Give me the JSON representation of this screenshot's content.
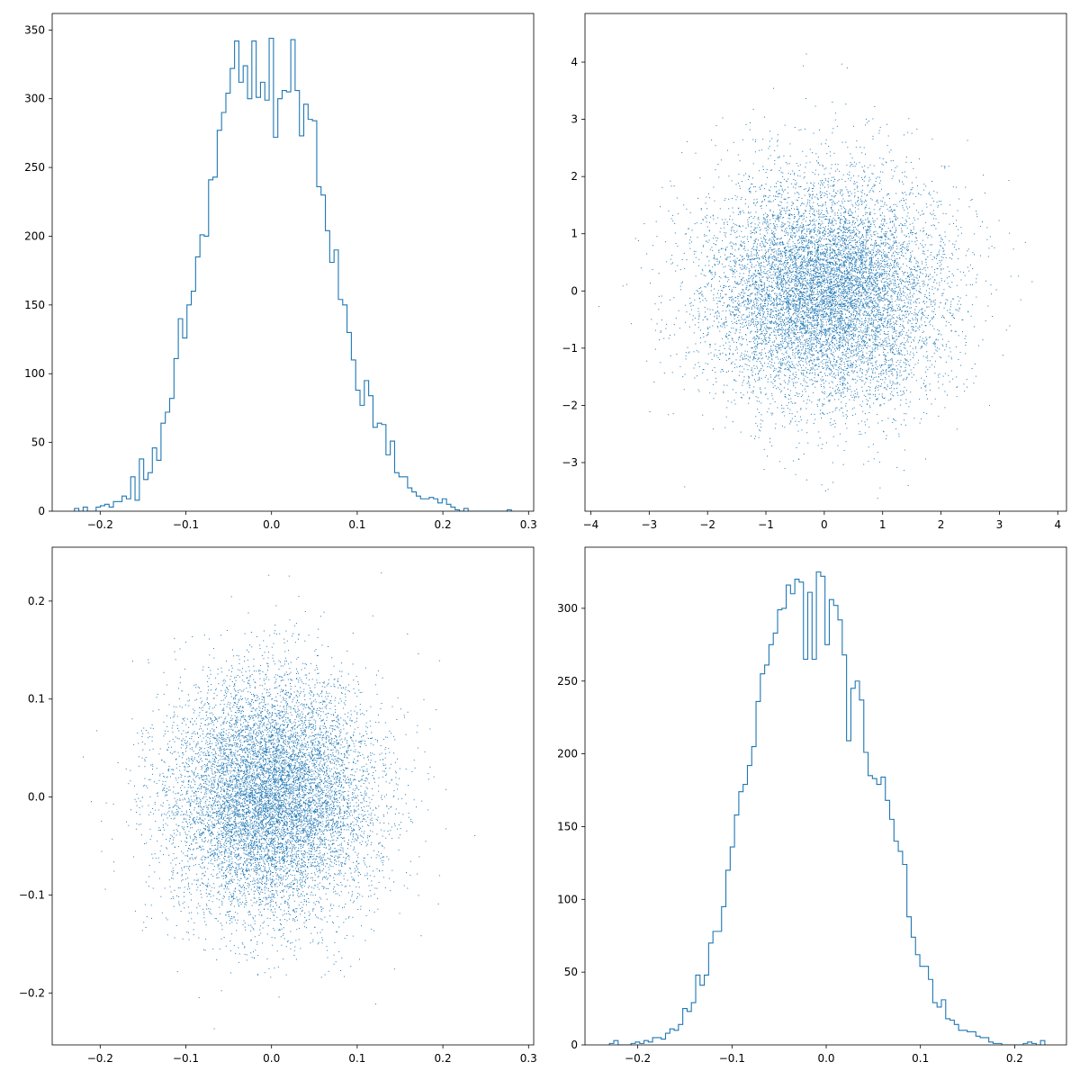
{
  "colors": {
    "series": "#1f77b4",
    "axes": "#000000",
    "background": "#ffffff"
  },
  "chart_data": [
    {
      "type": "bar",
      "style": "step-histogram",
      "title": "",
      "xlabel": "",
      "ylabel": "",
      "grid": false,
      "xlim": [
        -0.256,
        0.306
      ],
      "ylim": [
        0,
        362
      ],
      "xticks": [
        -0.2,
        -0.1,
        0.0,
        0.1,
        0.2,
        0.3
      ],
      "xtick_labels": [
        "−0.2",
        "−0.1",
        "0.0",
        "0.1",
        "0.2",
        "0.3"
      ],
      "yticks": [
        0,
        50,
        100,
        150,
        200,
        250,
        300,
        350
      ],
      "ytick_labels": [
        "0",
        "50",
        "100",
        "150",
        "200",
        "250",
        "300",
        "350"
      ],
      "bin_start": -0.23,
      "bin_end": 0.28,
      "values": [
        2,
        0,
        3,
        0,
        0,
        3,
        4,
        5,
        3,
        7,
        7,
        11,
        9,
        25,
        8,
        38,
        23,
        28,
        46,
        37,
        64,
        72,
        82,
        111,
        140,
        126,
        150,
        160,
        185,
        201,
        200,
        241,
        243,
        277,
        290,
        304,
        322,
        342,
        312,
        324,
        300,
        342,
        301,
        312,
        299,
        344,
        272,
        300,
        306,
        305,
        343,
        306,
        273,
        296,
        285,
        284,
        236,
        230,
        204,
        181,
        190,
        154,
        150,
        130,
        110,
        88,
        77,
        95,
        84,
        61,
        64,
        63,
        41,
        51,
        28,
        25,
        25,
        17,
        14,
        11,
        9,
        9,
        10,
        9,
        6,
        9,
        5,
        3,
        1,
        0,
        2,
        0,
        0,
        0,
        0,
        0,
        0,
        0,
        0,
        0,
        1
      ]
    },
    {
      "type": "scatter",
      "title": "",
      "xlabel": "",
      "ylabel": "",
      "grid": false,
      "xlim": [
        -4.1,
        4.15
      ],
      "ylim": [
        -3.85,
        4.85
      ],
      "xticks": [
        -4,
        -3,
        -2,
        -1,
        0,
        1,
        2,
        3,
        4
      ],
      "xtick_labels": [
        "−4",
        "−3",
        "−2",
        "−1",
        "0",
        "1",
        "2",
        "3",
        "4"
      ],
      "yticks": [
        -3,
        -2,
        -1,
        0,
        1,
        2,
        3,
        4
      ],
      "ytick_labels": [
        "−3",
        "−2",
        "−1",
        "0",
        "1",
        "2",
        "3",
        "4"
      ],
      "n_points": 10000,
      "x_mean": 0,
      "x_std": 1,
      "y_mean": 0,
      "y_std": 1,
      "marker": "pixel"
    },
    {
      "type": "scatter",
      "title": "",
      "xlabel": "",
      "ylabel": "",
      "grid": false,
      "xlim": [
        -0.256,
        0.306
      ],
      "ylim": [
        -0.253,
        0.255
      ],
      "xticks": [
        -0.2,
        -0.1,
        0.0,
        0.1,
        0.2,
        0.3
      ],
      "xtick_labels": [
        "−0.2",
        "−0.1",
        "0.0",
        "0.1",
        "0.2",
        "0.3"
      ],
      "yticks": [
        -0.2,
        -0.1,
        0.0,
        0.1,
        0.2
      ],
      "ytick_labels": [
        "−0.2",
        "−0.1",
        "0.0",
        "0.1",
        "0.2"
      ],
      "n_points": 10000,
      "x_mean": 0,
      "x_std": 0.06,
      "y_mean": 0,
      "y_std": 0.06,
      "marker": "pixel"
    },
    {
      "type": "bar",
      "style": "step-histogram",
      "orientation": "vertical",
      "title": "",
      "xlabel": "",
      "ylabel": "",
      "grid": false,
      "xlim": [
        -0.256,
        0.255
      ],
      "ylim": [
        0,
        342
      ],
      "xticks": [
        -0.2,
        -0.1,
        0.0,
        0.1,
        0.2
      ],
      "xtick_labels": [
        "−0.2",
        "−0.1",
        "0.0",
        "0.1",
        "0.2"
      ],
      "yticks": [
        0,
        50,
        100,
        150,
        200,
        250,
        300
      ],
      "ytick_labels": [
        "0",
        "50",
        "100",
        "150",
        "200",
        "250",
        "300"
      ],
      "bin_start": -0.23,
      "bin_end": 0.232,
      "values": [
        1,
        3,
        0,
        0,
        0,
        1,
        2,
        1,
        3,
        2,
        5,
        5,
        4,
        8,
        11,
        10,
        14,
        25,
        23,
        29,
        48,
        41,
        48,
        70,
        78,
        78,
        95,
        120,
        136,
        158,
        174,
        179,
        192,
        205,
        236,
        255,
        261,
        275,
        283,
        299,
        300,
        316,
        310,
        320,
        318,
        265,
        311,
        265,
        325,
        322,
        275,
        306,
        302,
        292,
        268,
        209,
        245,
        250,
        237,
        201,
        185,
        183,
        179,
        184,
        168,
        155,
        140,
        133,
        124,
        88,
        74,
        62,
        54,
        54,
        45,
        29,
        26,
        31,
        18,
        17,
        14,
        10,
        10,
        9,
        9,
        6,
        5,
        5,
        2,
        1,
        1,
        0,
        0,
        0,
        0,
        0,
        1,
        2,
        1,
        0,
        3
      ]
    }
  ]
}
